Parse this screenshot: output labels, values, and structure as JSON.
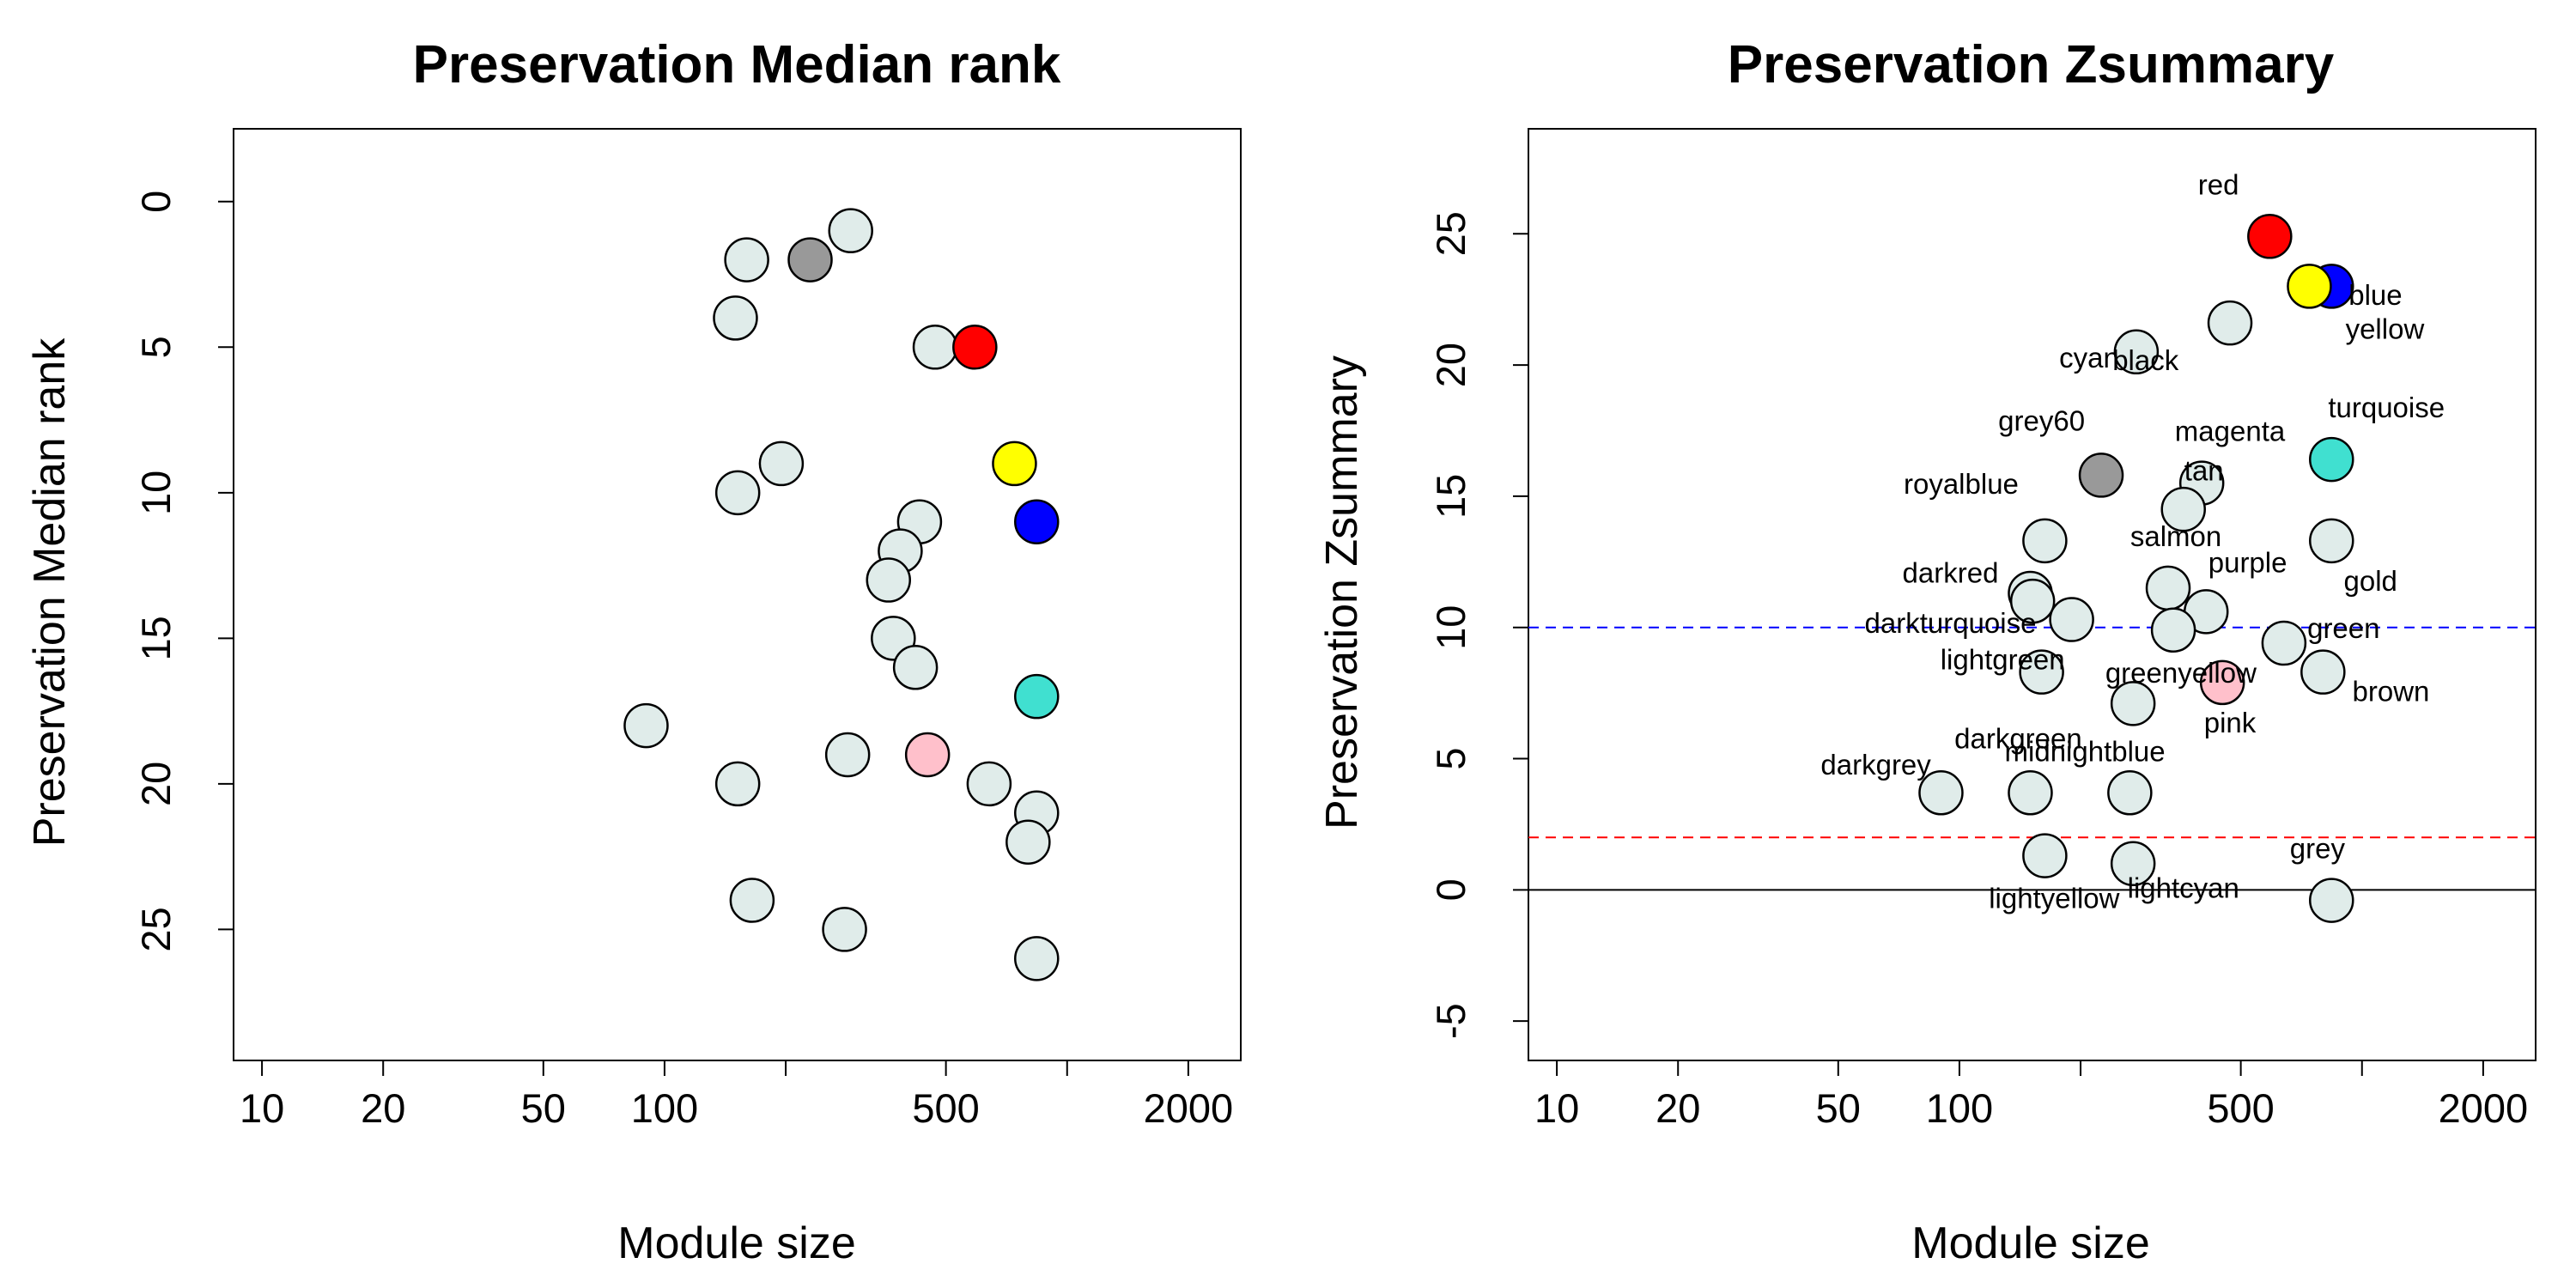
{
  "colors": {
    "default_point": "#e0ecea",
    "red": "#ff0000",
    "yellow": "#ffff00",
    "blue": "#0000ff",
    "turquoise": "#40e0d0",
    "pink": "#ffc0cb",
    "grey60": "#999999",
    "threshold_high": "#0000ff",
    "threshold_low": "#ff0000"
  },
  "chart_data": [
    {
      "type": "scatter",
      "title": "Preservation Median rank",
      "xlabel": "Module size",
      "ylabel": "Preservation Median rank",
      "x_scale": "log",
      "xlim": [
        8.5,
        2700
      ],
      "ylim": [
        29.5,
        -2.5
      ],
      "y_reversed": true,
      "x_ticks": [
        10,
        20,
        50,
        100,
        200,
        500,
        1000,
        2000
      ],
      "x_tick_labels": [
        "10",
        "20",
        "50",
        "100",
        "",
        "500",
        "",
        "2000"
      ],
      "y_ticks": [
        0,
        5,
        10,
        15,
        20,
        25
      ],
      "points": [
        {
          "x": 290,
          "y": 1,
          "color": "#e0ecea"
        },
        {
          "x": 230,
          "y": 2,
          "color": "#999999"
        },
        {
          "x": 160,
          "y": 2,
          "color": "#e0ecea"
        },
        {
          "x": 150,
          "y": 4,
          "color": "#e0ecea"
        },
        {
          "x": 470,
          "y": 5,
          "color": "#e0ecea"
        },
        {
          "x": 590,
          "y": 5,
          "color": "#ff0000"
        },
        {
          "x": 740,
          "y": 9,
          "color": "#ffff00"
        },
        {
          "x": 195,
          "y": 9,
          "color": "#e0ecea"
        },
        {
          "x": 152,
          "y": 10,
          "color": "#e0ecea"
        },
        {
          "x": 840,
          "y": 11,
          "color": "#0000ff"
        },
        {
          "x": 430,
          "y": 11,
          "color": "#e0ecea"
        },
        {
          "x": 385,
          "y": 12,
          "color": "#e0ecea"
        },
        {
          "x": 360,
          "y": 13,
          "color": "#e0ecea"
        },
        {
          "x": 370,
          "y": 15,
          "color": "#e0ecea"
        },
        {
          "x": 420,
          "y": 16,
          "color": "#e0ecea"
        },
        {
          "x": 840,
          "y": 17,
          "color": "#40e0d0"
        },
        {
          "x": 90,
          "y": 18,
          "color": "#e0ecea"
        },
        {
          "x": 450,
          "y": 19,
          "color": "#ffc0cb"
        },
        {
          "x": 285,
          "y": 19,
          "color": "#e0ecea"
        },
        {
          "x": 152,
          "y": 20,
          "color": "#e0ecea"
        },
        {
          "x": 640,
          "y": 20,
          "color": "#e0ecea"
        },
        {
          "x": 840,
          "y": 21,
          "color": "#e0ecea"
        },
        {
          "x": 800,
          "y": 22,
          "color": "#e0ecea"
        },
        {
          "x": 165,
          "y": 24,
          "color": "#e0ecea"
        },
        {
          "x": 280,
          "y": 25,
          "color": "#e0ecea"
        },
        {
          "x": 840,
          "y": 26,
          "color": "#e0ecea"
        }
      ]
    },
    {
      "type": "scatter",
      "title": "Preservation Zsummary",
      "xlabel": "Module size",
      "ylabel": "Preservation Zsummary",
      "x_scale": "log",
      "xlim": [
        8.5,
        2700
      ],
      "ylim": [
        -6.5,
        29
      ],
      "x_ticks": [
        10,
        20,
        50,
        100,
        200,
        500,
        1000,
        2000
      ],
      "x_tick_labels": [
        "10",
        "20",
        "50",
        "100",
        "",
        "500",
        "",
        "2000"
      ],
      "y_ticks": [
        -5,
        0,
        5,
        10,
        15,
        20,
        25
      ],
      "reference_lines": [
        {
          "y": 0,
          "style": "solid",
          "color": "#000000"
        },
        {
          "y": 2,
          "style": "dashed",
          "color": "#ff0000"
        },
        {
          "y": 10,
          "style": "dashed",
          "color": "#0000ff"
        }
      ],
      "points": [
        {
          "x": 590,
          "y": 24.9,
          "color": "#ff0000",
          "label": "red",
          "label_x": 440,
          "label_y": 26.5
        },
        {
          "x": 840,
          "y": 23.0,
          "color": "#0000ff",
          "label": "blue",
          "label_x": 1080,
          "label_y": 22.3
        },
        {
          "x": 740,
          "y": 23.0,
          "color": "#ffff00",
          "label": "yellow",
          "label_x": 1140,
          "label_y": 21.0
        },
        {
          "x": 470,
          "y": 21.6,
          "color": "#e0ecea",
          "label": "black",
          "label_x": 290,
          "label_y": 19.8
        },
        {
          "x": 275,
          "y": 20.5,
          "color": "#e0ecea",
          "label": "cyan",
          "label_x": 210,
          "label_y": 19.9
        },
        {
          "x": 840,
          "y": 16.4,
          "color": "#40e0d0",
          "label": "turquoise",
          "label_x": 1150,
          "label_y": 18.0
        },
        {
          "x": 225,
          "y": 15.8,
          "color": "#999999",
          "label": "grey60",
          "label_x": 160,
          "label_y": 17.5
        },
        {
          "x": 400,
          "y": 15.5,
          "color": "#e0ecea",
          "label": "magenta",
          "label_x": 470,
          "label_y": 17.1
        },
        {
          "x": 360,
          "y": 14.5,
          "color": "#e0ecea",
          "label": "tan",
          "label_x": 405,
          "label_y": 15.6
        },
        {
          "x": 163,
          "y": 13.3,
          "color": "#e0ecea",
          "label": "royalblue",
          "label_x": 101,
          "label_y": 15.1
        },
        {
          "x": 840,
          "y": 13.3,
          "color": "#e0ecea",
          "label": "gold",
          "label_x": 1050,
          "label_y": 11.4
        },
        {
          "x": 330,
          "y": 11.5,
          "color": "#e0ecea",
          "label": "salmon",
          "label_x": 345,
          "label_y": 13.1
        },
        {
          "x": 150,
          "y": 11.3,
          "color": "#e0ecea",
          "label": "darkred",
          "label_x": 95,
          "label_y": 11.7
        },
        {
          "x": 152,
          "y": 11.0,
          "color": "#e0ecea"
        },
        {
          "x": 410,
          "y": 10.6,
          "color": "#e0ecea",
          "label": "purple",
          "label_x": 520,
          "label_y": 12.1
        },
        {
          "x": 190,
          "y": 10.3,
          "color": "#e0ecea",
          "label": "darkturquoise",
          "label_x": 95,
          "label_y": 9.8
        },
        {
          "x": 340,
          "y": 9.9,
          "color": "#e0ecea"
        },
        {
          "x": 640,
          "y": 9.4,
          "color": "#e0ecea",
          "label": "green",
          "label_x": 900,
          "label_y": 9.6
        },
        {
          "x": 800,
          "y": 8.3,
          "color": "#e0ecea",
          "label": "brown",
          "label_x": 1180,
          "label_y": 7.2
        },
        {
          "x": 450,
          "y": 7.9,
          "color": "#ffc0cb",
          "label": "greenyellow",
          "label_x": 355,
          "label_y": 7.9
        },
        {
          "x": 160,
          "y": 8.3,
          "color": "#e0ecea",
          "label": "lightgreen",
          "label_x": 128,
          "label_y": 8.4
        },
        {
          "x": 270,
          "y": 7.1,
          "color": "#e0ecea",
          "label": "pink",
          "label_x": 470,
          "label_y": 6.0
        },
        {
          "x": 150,
          "y": 3.7,
          "color": "#e0ecea",
          "label": "darkgreen",
          "label_x": 140,
          "label_y": 5.4
        },
        {
          "x": 90,
          "y": 3.7,
          "color": "#e0ecea",
          "label": "darkgrey",
          "label_x": 62,
          "label_y": 4.4
        },
        {
          "x": 265,
          "y": 3.7,
          "color": "#e0ecea",
          "label": "midnightblue",
          "label_x": 205,
          "label_y": 4.9
        },
        {
          "x": 163,
          "y": 1.3,
          "color": "#e0ecea",
          "label": "lightyellow",
          "label_x": 172,
          "label_y": -0.7
        },
        {
          "x": 270,
          "y": 1.0,
          "color": "#e0ecea",
          "label": "lightcyan",
          "label_x": 360,
          "label_y": -0.3
        },
        {
          "x": 840,
          "y": -0.4,
          "color": "#e0ecea",
          "label": "grey",
          "label_x": 775,
          "label_y": 1.2
        }
      ]
    }
  ]
}
